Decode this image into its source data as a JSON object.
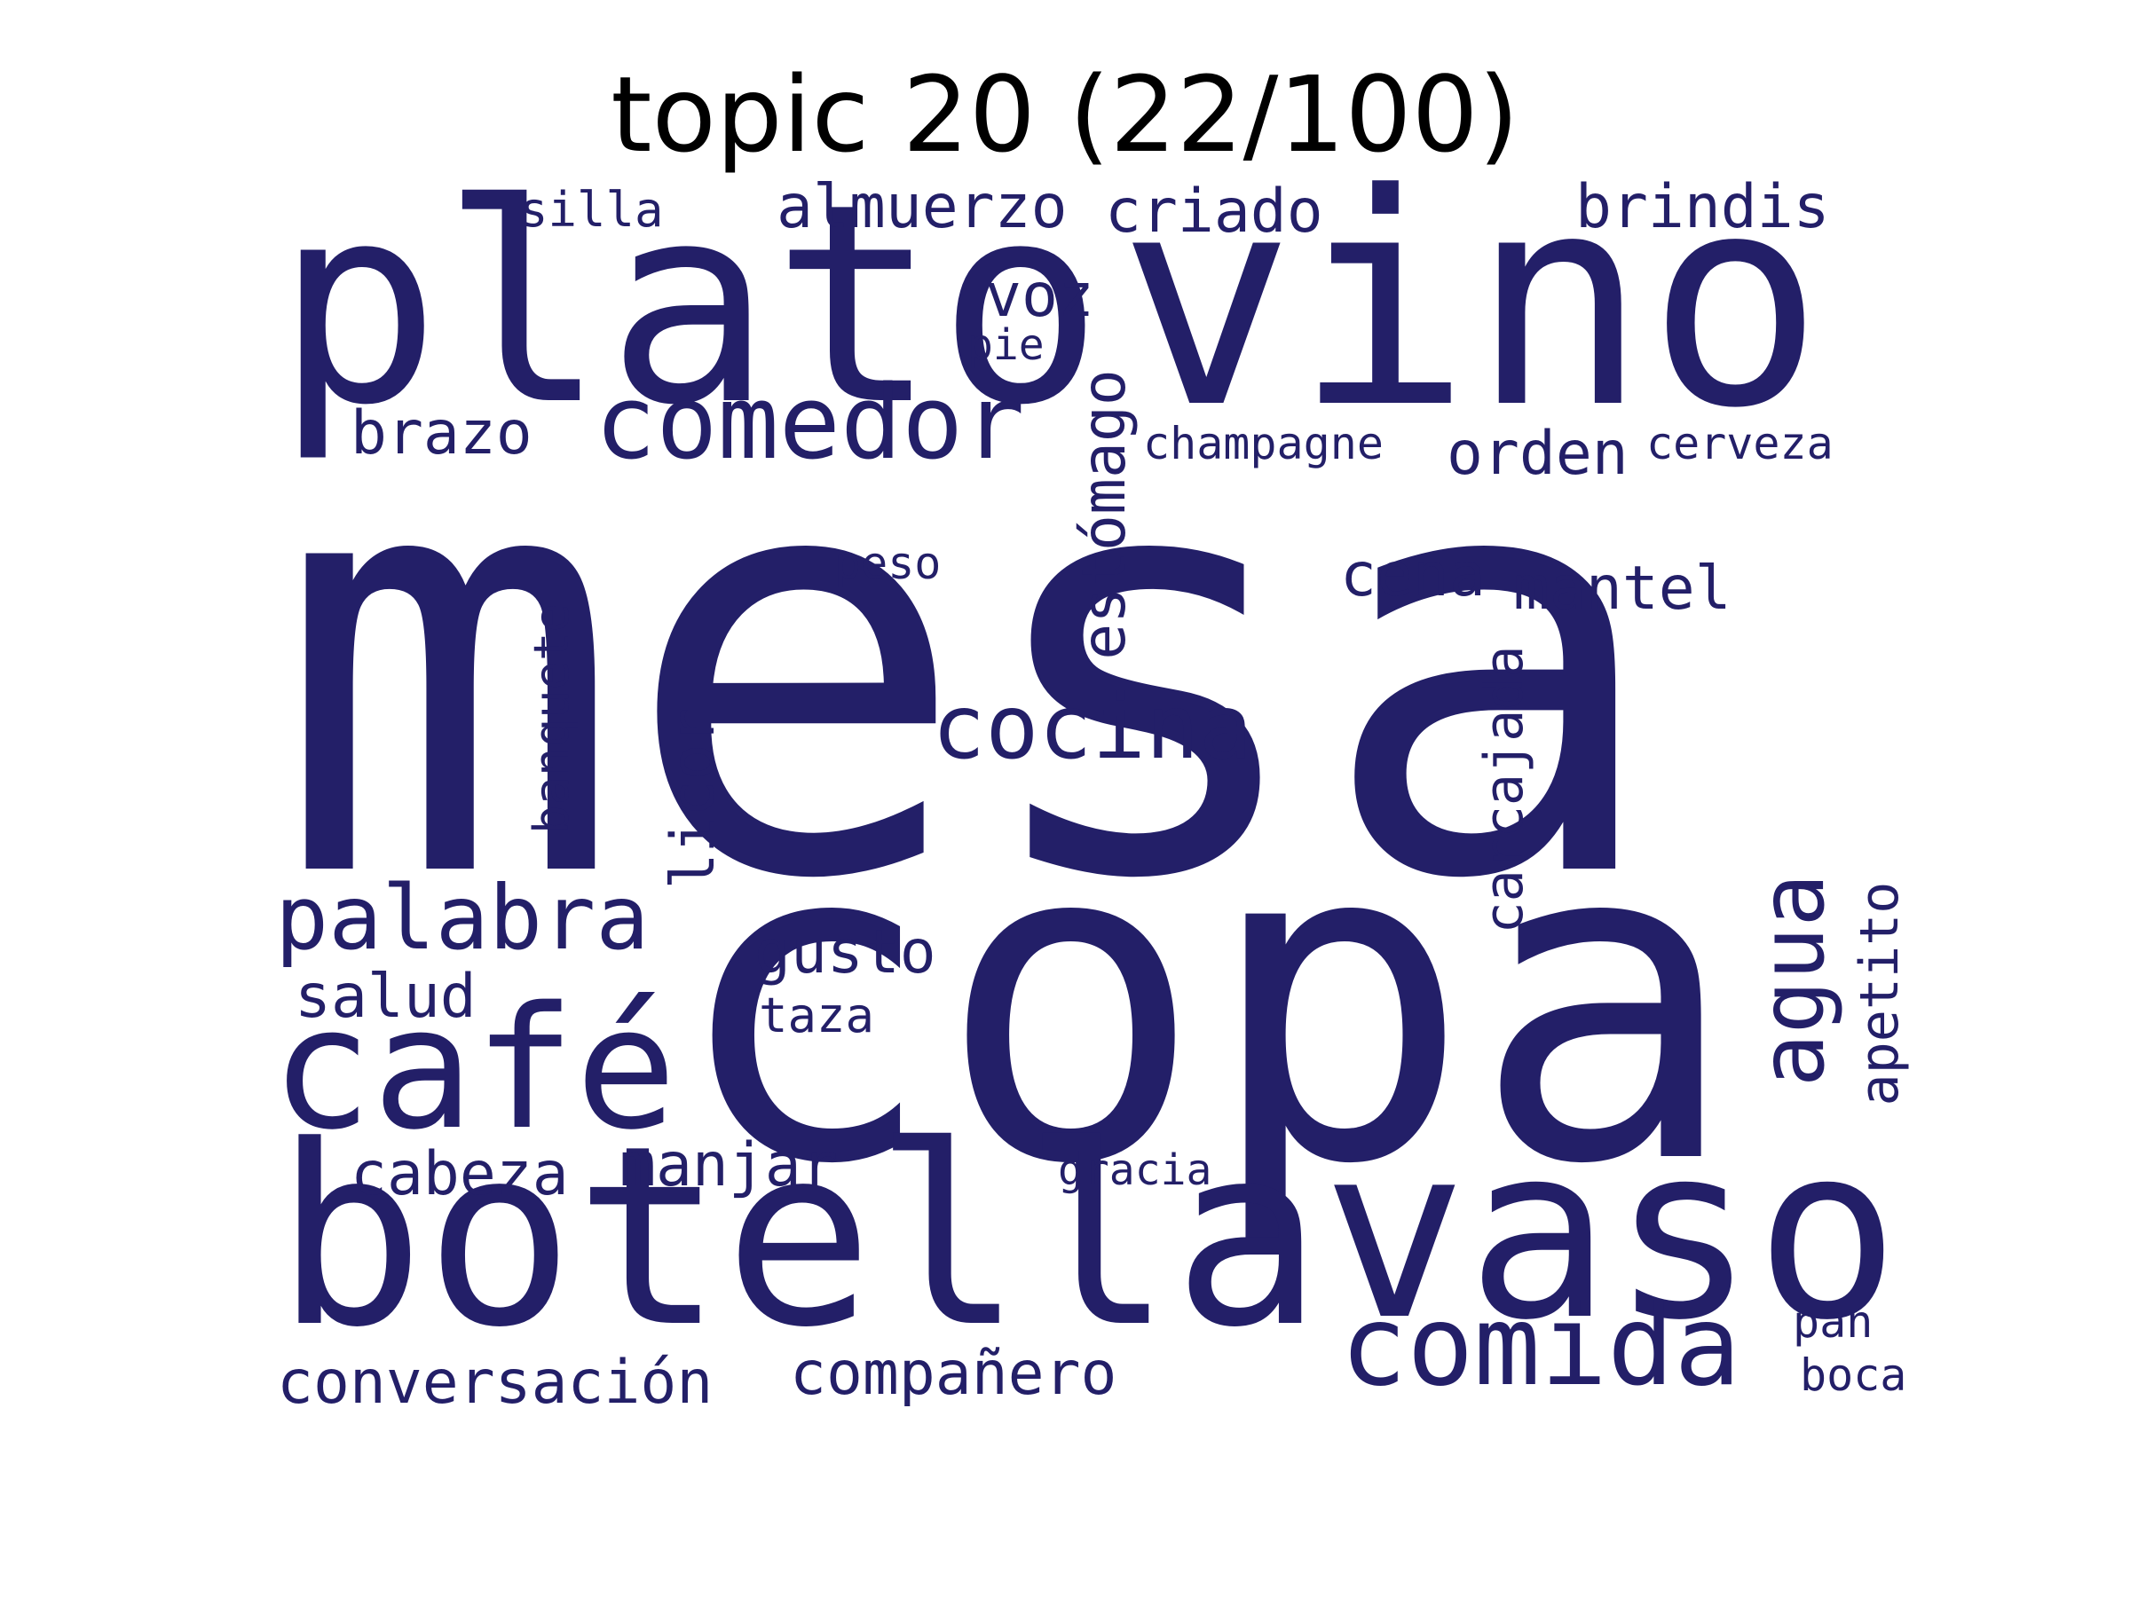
{
  "title": "topic 20 (22/100)",
  "colors": {
    "word": "#231f68",
    "title": "#000000",
    "background": "#ffffff"
  },
  "words": {
    "mesa": "mesa",
    "copa": "copa",
    "vino": "vino",
    "plato": "plato",
    "botella": "botella",
    "vaso": "vaso",
    "cafe": "café",
    "comida": "comida",
    "comedor": "comedor",
    "cocina": "cocina",
    "palabra": "palabra",
    "agua": "agua",
    "almuerzo": "almuerzo",
    "criado": "criado",
    "brindis": "brindis",
    "silla": "silla",
    "voz": "voz",
    "pie": "pie",
    "brazo": "brazo",
    "estomago": "estómago",
    "champagne": "champagne",
    "orden": "orden",
    "cerveza": "cerveza",
    "peso": "peso",
    "cena": "cena",
    "mantel": "mantel",
    "banquete": "banquete",
    "licor": "licor",
    "carcajada": "carcajada",
    "gusto": "gusto",
    "taza": "taza",
    "salud": "salud",
    "apetito": "apetito",
    "cabeza": "cabeza",
    "manjar": "manjar",
    "gracia": "gracia",
    "conversacion": "conversación",
    "companero": "compañero",
    "pan": "pan",
    "boca": "boca"
  }
}
